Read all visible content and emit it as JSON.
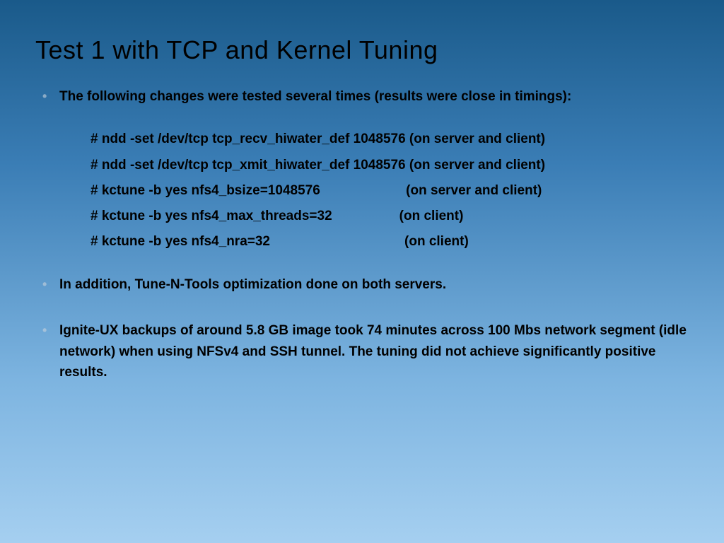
{
  "title": "Test 1 with TCP and Kernel Tuning",
  "bullet1": "The following changes were tested several times (results were close in timings):",
  "commands": {
    "c1": "# ndd -set /dev/tcp tcp_recv_hiwater_def 1048576 (on server and client)",
    "c2": "# ndd -set /dev/tcp tcp_xmit_hiwater_def 1048576 (on server and client)",
    "c3": "# kctune -b yes nfs4_bsize=1048576                       (on server and client)",
    "c4": "# kctune -b yes nfs4_max_threads=32                  (on client)",
    "c5": "# kctune -b yes nfs4_nra=32                                    (on client)"
  },
  "bullet2": "In addition, Tune-N-Tools optimization done on both servers.",
  "bullet3": "Ignite-UX backups of around 5.8 GB image took 74 minutes across 100 Mbs network segment (idle network) when using NFSv4 and SSH tunnel. The tuning did not achieve significantly positive results.",
  "colors": {
    "bg_top": "#1a5a8a",
    "bg_bottom": "#a5cff0",
    "text": "#000000",
    "bullet_marker": "rgba(200,210,220,0.6)"
  },
  "typography": {
    "title_fontsize_pt": 27,
    "body_fontsize_pt": 14,
    "body_weight": "bold",
    "title_weight": "normal",
    "font_family": "Arial"
  }
}
